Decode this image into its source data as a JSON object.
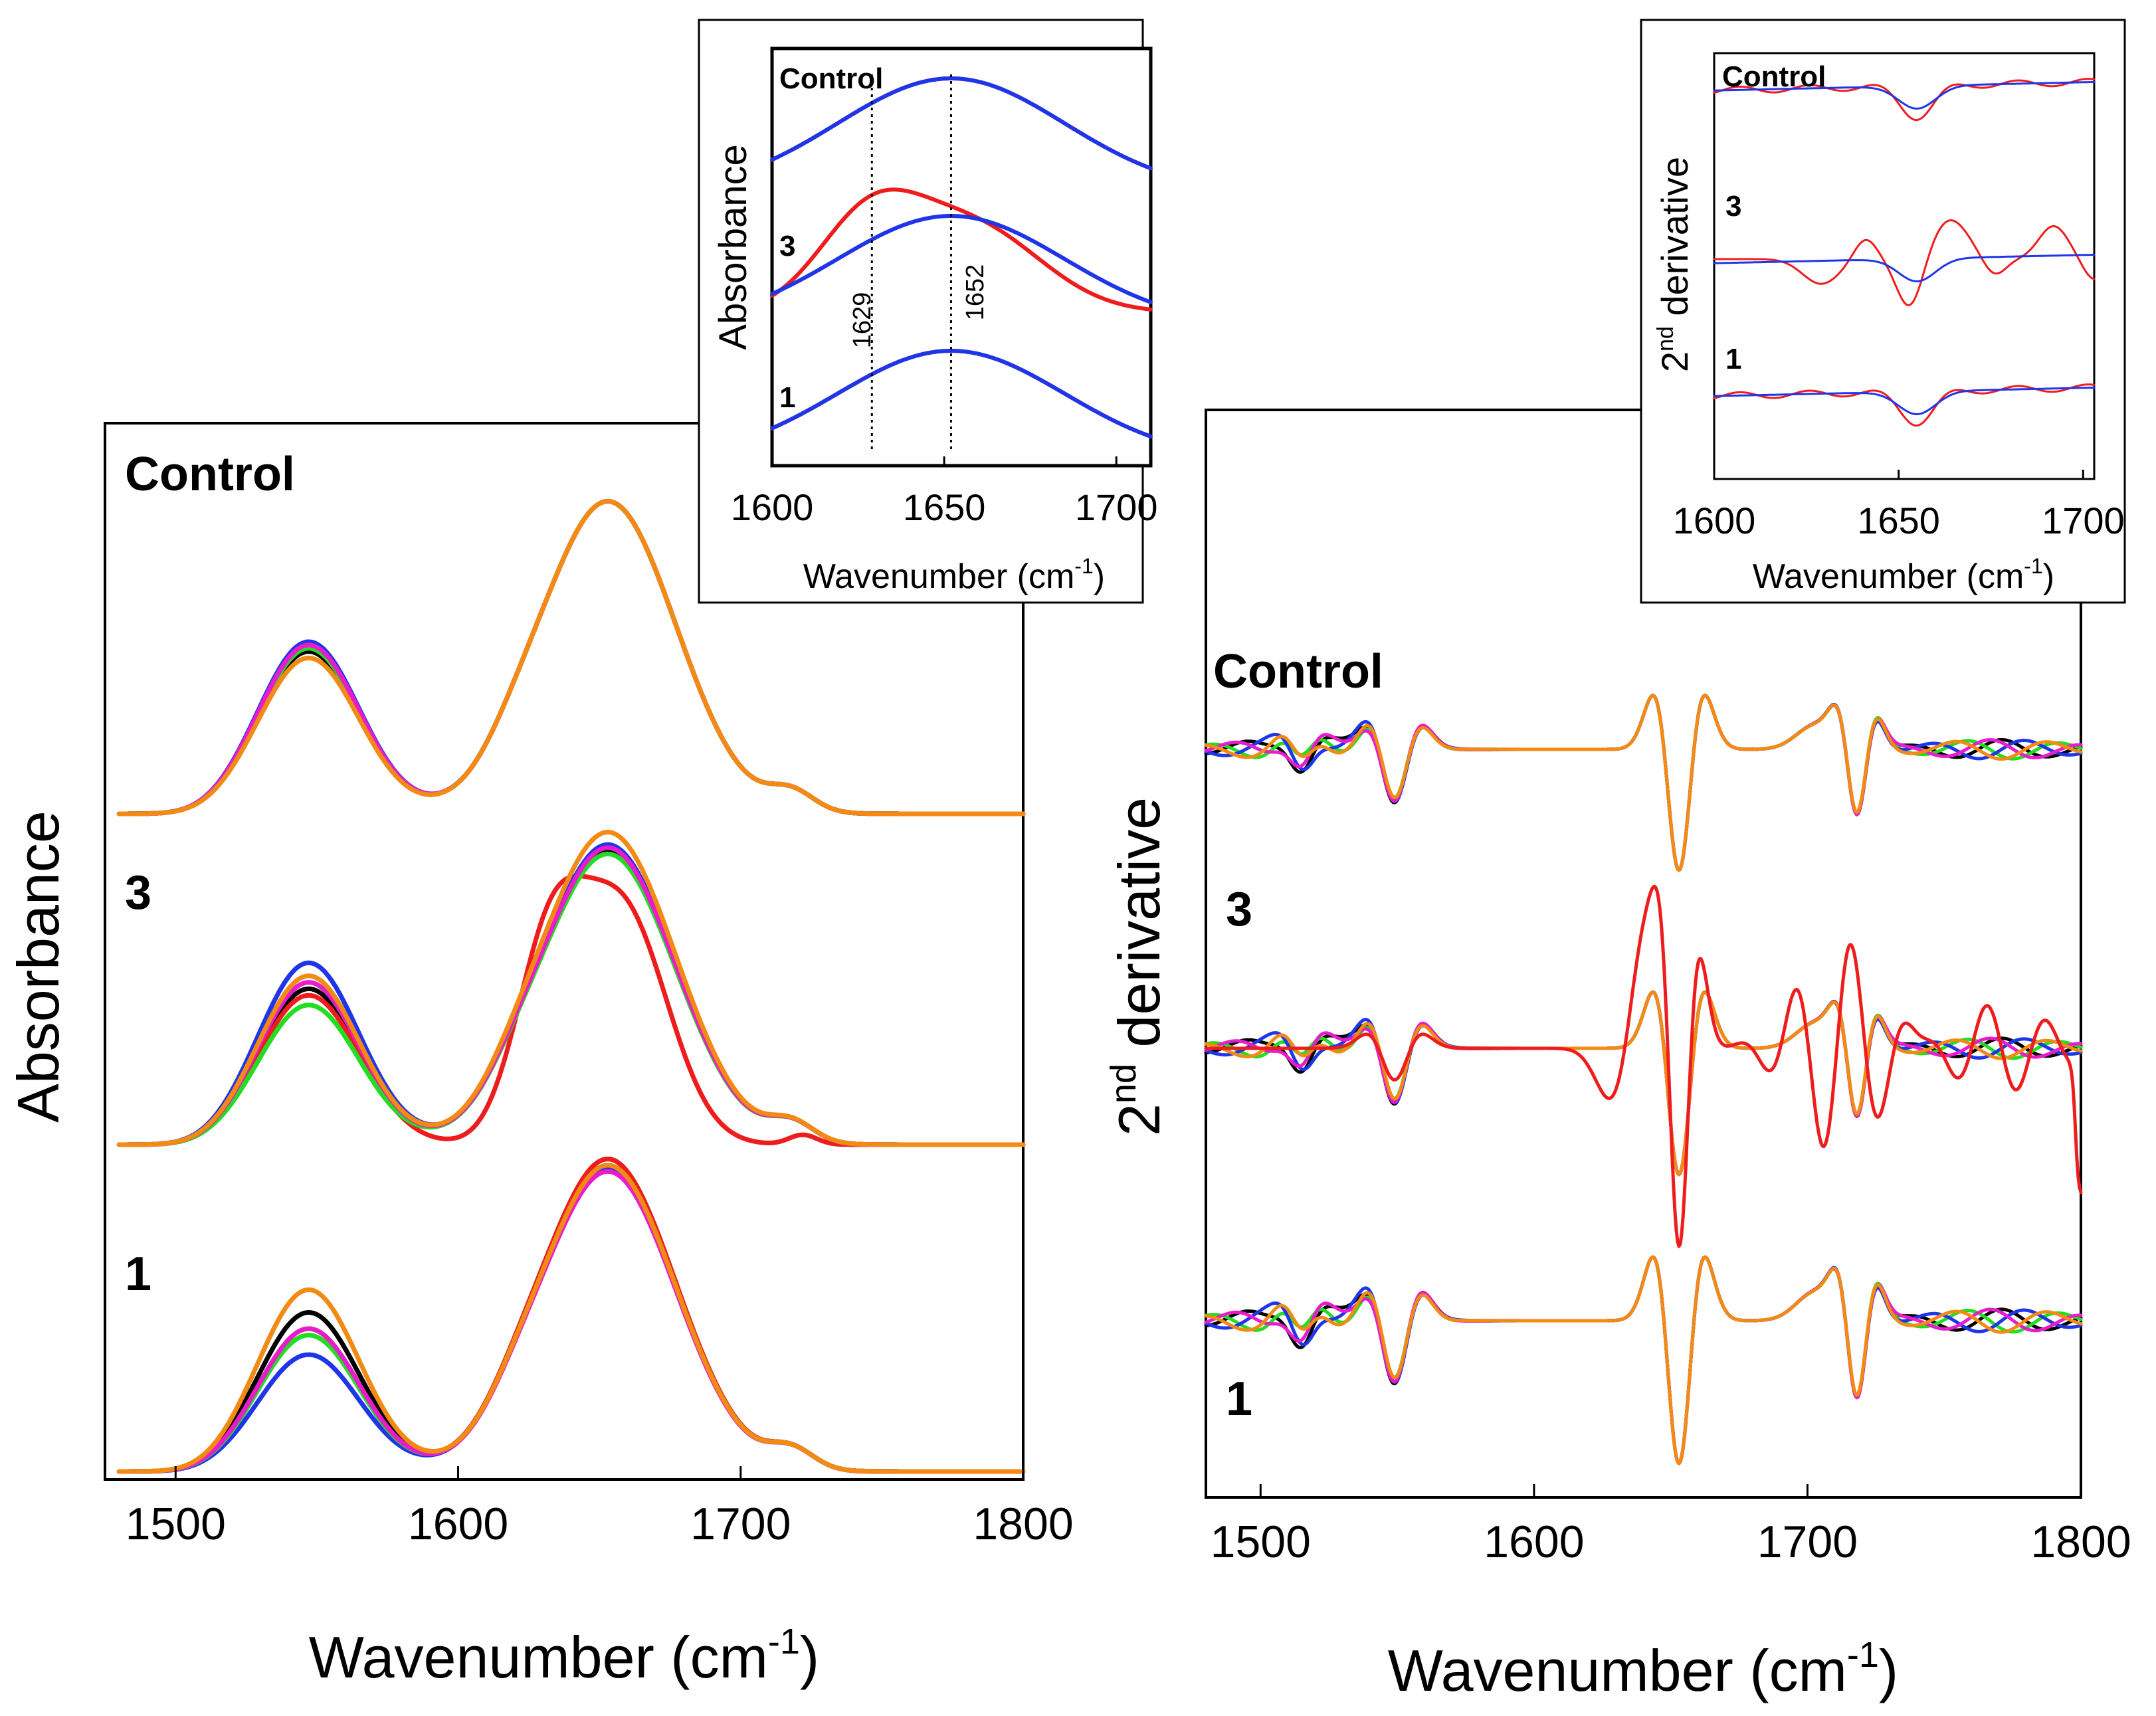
{
  "colors": {
    "black": "#000000",
    "red": "#ee1c1c",
    "blue": "#1f35e8",
    "green": "#22dd22",
    "magenta": "#e81ccc",
    "orange": "#f28a14"
  },
  "chart_data": [
    {
      "id": "absorbance",
      "type": "line",
      "xlabel": "Wavenumber (cm",
      "xlabel_sup": "-1",
      "xlabel_end": ")",
      "ylabel": "Absorbance",
      "xlim": [
        1475,
        1800
      ],
      "xticks": [
        "1500",
        "1600",
        "1700",
        "1800"
      ],
      "grid": false,
      "groups": [
        "Control",
        "3",
        "1"
      ],
      "series_colors": [
        "black",
        "red",
        "blue",
        "green",
        "magenta",
        "orange"
      ],
      "peaks": {
        "amide_II": 1547,
        "amide_I": 1653
      }
    },
    {
      "id": "second-derivative",
      "type": "line",
      "xlabel": "Wavenumber (cm",
      "xlabel_sup": "-1",
      "xlabel_end": ")",
      "ylabel_pre": "2",
      "ylabel_sup": "nd",
      "ylabel_post": " derivative",
      "xlim": [
        1480,
        1800
      ],
      "xticks": [
        "1500",
        "1600",
        "1700",
        "1800"
      ],
      "grid": false,
      "groups": [
        "Control",
        "3",
        "1"
      ],
      "minima": [
        1547,
        1653,
        1718
      ]
    },
    {
      "id": "absorbance-inset",
      "type": "line",
      "xlabel": "Wavenumber (cm",
      "xlabel_sup": "-1",
      "xlabel_end": ")",
      "ylabel": "Absorbance",
      "xlim": [
        1600,
        1710
      ],
      "xticks": [
        "1600",
        "1650",
        "1700"
      ],
      "groups": [
        "Control",
        "3",
        "1"
      ],
      "series_colors": [
        "red",
        "blue"
      ],
      "reference_lines": [
        {
          "x": 1629,
          "label": "1629"
        },
        {
          "x": 1652,
          "label": "1652"
        }
      ]
    },
    {
      "id": "second-derivative-inset",
      "type": "line",
      "xlabel": "Wavenumber (cm",
      "xlabel_sup": "-1",
      "xlabel_end": ")",
      "ylabel_pre": "2",
      "ylabel_sup": "nd",
      "ylabel_post": " derivative",
      "xlim": [
        1600,
        1703
      ],
      "xticks": [
        "1600",
        "1650",
        "1700"
      ],
      "groups": [
        "Control",
        "3",
        "1"
      ],
      "series_colors": [
        "red",
        "blue"
      ]
    }
  ]
}
